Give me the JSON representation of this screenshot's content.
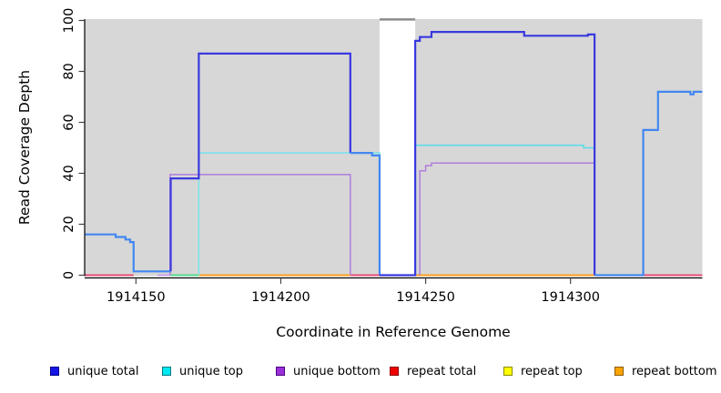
{
  "figure": {
    "xlabel": "Coordinate in Reference Genome",
    "ylabel": "Read Coverage Depth"
  },
  "legend": {
    "items": [
      {
        "label": "unique total",
        "color": "#1515E6",
        "border": "#00008B"
      },
      {
        "label": "unique top",
        "color": "#00E8F0",
        "border": "#007C85"
      },
      {
        "label": "unique bottom",
        "color": "#9B30D9",
        "border": "#4B0082"
      },
      {
        "label": "repeat total",
        "color": "#EE0000",
        "border": "#8B0000"
      },
      {
        "label": "repeat top",
        "color": "#FFFF00",
        "border": "#8B8B00"
      },
      {
        "label": "repeat bottom",
        "color": "#FFA500",
        "border": "#8B5A00"
      }
    ]
  },
  "chart_data": {
    "type": "line",
    "step": true,
    "title": "",
    "xlabel": "Coordinate in Reference Genome",
    "ylabel": "Read Coverage Depth",
    "xlim": [
      1914132.3,
      1914345.5
    ],
    "ylim": [
      0,
      100
    ],
    "x_ticks": [
      1914150,
      1914200,
      1914250,
      1914300
    ],
    "y_ticks": [
      0,
      20,
      40,
      60,
      80,
      100
    ],
    "background": "#D7D7D7",
    "grid": false,
    "legend_position": "bottom",
    "mask_region": {
      "x_start": 1914234.1,
      "x_end": 1914246.4,
      "fill": "#FFFFFF",
      "cap_value": 100.4,
      "cap_color": "#8C8C8C"
    },
    "series": [
      {
        "name": "unique top block 1",
        "legend": "unique top",
        "color": "#7BE2EC",
        "width": 1.6,
        "path": [
          [
            1914171.7,
            0
          ],
          [
            1914171.7,
            48
          ],
          [
            1914234.1,
            48
          ],
          [
            1914234.1,
            0
          ]
        ]
      },
      {
        "name": "unique top block 2",
        "legend": "unique top",
        "color": "#5ADCE8",
        "width": 1.6,
        "path": [
          [
            1914246.4,
            0
          ],
          [
            1914246.4,
            51
          ],
          [
            1914304.5,
            51
          ],
          [
            1914304.5,
            50
          ],
          [
            1914308.3,
            50
          ],
          [
            1914308.3,
            0
          ]
        ]
      },
      {
        "name": "unique bottom block 1",
        "legend": "unique bottom",
        "color": "#B07DDB",
        "width": 1.5,
        "path": [
          [
            1914161.8,
            0
          ],
          [
            1914161.8,
            39.5
          ],
          [
            1914224,
            39.5
          ],
          [
            1914224,
            0
          ]
        ]
      },
      {
        "name": "unique bottom block 2",
        "legend": "unique bottom",
        "color": "#B07DDB",
        "width": 1.5,
        "path": [
          [
            1914248,
            0
          ],
          [
            1914248,
            41
          ],
          [
            1914250,
            41
          ],
          [
            1914250,
            43
          ],
          [
            1914252,
            43
          ],
          [
            1914252,
            44
          ],
          [
            1914308.3,
            44
          ],
          [
            1914308.3,
            0
          ]
        ]
      },
      {
        "name": "unique total left bump",
        "legend": "unique total",
        "color": "#4187F0",
        "width": 2.2,
        "path": [
          [
            1914132.3,
            16
          ],
          [
            1914143,
            16
          ],
          [
            1914143,
            15
          ],
          [
            1914146.4,
            15
          ],
          [
            1914146.4,
            14
          ],
          [
            1914148,
            14
          ],
          [
            1914148,
            13
          ],
          [
            1914149.2,
            13
          ],
          [
            1914149.2,
            1.5
          ],
          [
            1914162,
            1.5
          ]
        ]
      },
      {
        "name": "unique total block 1",
        "legend": "unique total",
        "color": "#3939DF",
        "width": 2.2,
        "path": [
          [
            1914162,
            1.5
          ],
          [
            1914162,
            38
          ],
          [
            1914171.7,
            38
          ],
          [
            1914171.7,
            87
          ],
          [
            1914224,
            87
          ],
          [
            1914224,
            48
          ]
        ]
      },
      {
        "name": "unique total shelf",
        "legend": "unique total",
        "color": "#4187F0",
        "width": 2.2,
        "path": [
          [
            1914224,
            48
          ],
          [
            1914231.5,
            48
          ],
          [
            1914231.5,
            47
          ],
          [
            1914234.1,
            47
          ],
          [
            1914234.1,
            0
          ]
        ]
      },
      {
        "name": "unique total block 2",
        "legend": "unique total",
        "color": "#3939DF",
        "width": 2.2,
        "path": [
          [
            1914234.1,
            0
          ],
          [
            1914246.4,
            0
          ],
          [
            1914246.4,
            92
          ],
          [
            1914248,
            92
          ],
          [
            1914248,
            93.5
          ],
          [
            1914252,
            93.5
          ],
          [
            1914252,
            95.5
          ],
          [
            1914284,
            95.5
          ],
          [
            1914284,
            94
          ],
          [
            1914306,
            94
          ],
          [
            1914306,
            94.5
          ],
          [
            1914308.3,
            94.5
          ],
          [
            1914308.3,
            0
          ]
        ]
      },
      {
        "name": "unique total right",
        "legend": "unique total",
        "color": "#4187F0",
        "width": 2.2,
        "path": [
          [
            1914308.3,
            0
          ],
          [
            1914325.1,
            0
          ],
          [
            1914325.1,
            57
          ],
          [
            1914330.2,
            57
          ],
          [
            1914330.2,
            72
          ],
          [
            1914341.4,
            72
          ],
          [
            1914341.4,
            71
          ],
          [
            1914342.5,
            71
          ],
          [
            1914342.5,
            72
          ],
          [
            1914345.5,
            72
          ]
        ]
      }
    ],
    "zero_line_segments": [
      {
        "name": "repeat total at zero left",
        "color": "#E44D76",
        "x_start": 1914132.3,
        "x_end": 1914149.2
      },
      {
        "name": "unique bottom at zero",
        "color": "#C9A0E8",
        "x_start": 1914157.5,
        "x_end": 1914161.8
      },
      {
        "name": "top overlap at zero",
        "color": "#53D88A",
        "x_start": 1914161.8,
        "x_end": 1914171.7
      },
      {
        "name": "repeat bottom at zero mid",
        "color": "#FF9E1B",
        "x_start": 1914171.7,
        "x_end": 1914224
      },
      {
        "name": "repeat total at zero mid",
        "color": "#E44D76",
        "x_start": 1914224,
        "x_end": 1914234.1
      },
      {
        "name": "repeat bottom at zero right",
        "color": "#FF9E1B",
        "x_start": 1914246.4,
        "x_end": 1914308.3
      },
      {
        "name": "repeat total at zero right",
        "color": "#E44D76",
        "x_start": 1914308.3,
        "x_end": 1914345.5
      }
    ]
  }
}
